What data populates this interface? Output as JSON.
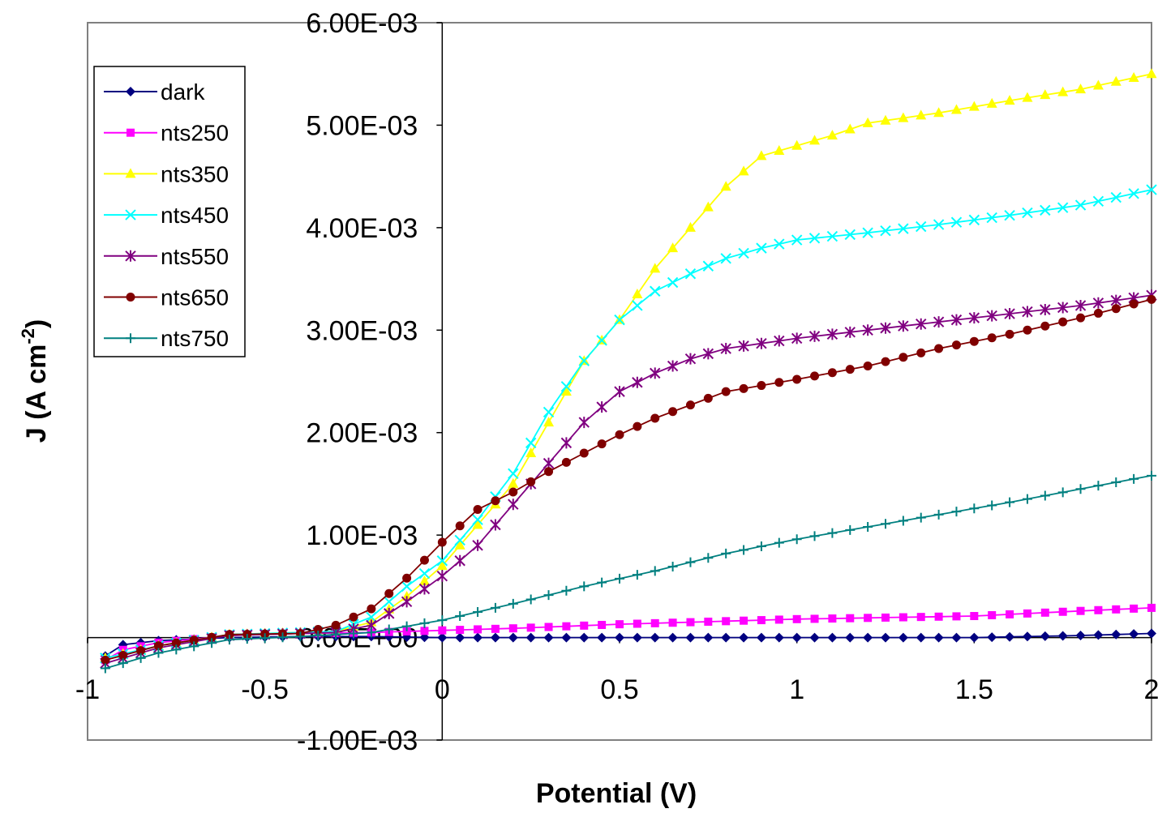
{
  "chart_data": {
    "type": "line",
    "title": "",
    "xlabel": "Potential (V)",
    "ylabel_main": "J (A cm",
    "ylabel_sup": "-2",
    "ylabel_close": ")",
    "xlim": [
      -1,
      2
    ],
    "ylim": [
      -0.001,
      0.006
    ],
    "x_ticks": [
      {
        "value": -1,
        "label": "-1"
      },
      {
        "value": -0.5,
        "label": "-0.5"
      },
      {
        "value": 0,
        "label": "0"
      },
      {
        "value": 0.5,
        "label": "0.5"
      },
      {
        "value": 1,
        "label": "1"
      },
      {
        "value": 1.5,
        "label": "1.5"
      },
      {
        "value": 2,
        "label": "2"
      }
    ],
    "y_ticks": [
      {
        "value": 0.006,
        "label": "6.00E-03"
      },
      {
        "value": 0.005,
        "label": "5.00E-03"
      },
      {
        "value": 0.004,
        "label": "4.00E-03"
      },
      {
        "value": 0.003,
        "label": "3.00E-03"
      },
      {
        "value": 0.002,
        "label": "2.00E-03"
      },
      {
        "value": 0.001,
        "label": "1.00E-03"
      },
      {
        "value": 0,
        "label": "0.00E+00"
      },
      {
        "value": -0.001,
        "label": "-1.00E-03"
      }
    ],
    "x_start": -0.95,
    "x_step": 0.05,
    "legend_position": "top-left",
    "series": [
      {
        "name": "dark",
        "color": "#000080",
        "marker": "diamond",
        "keys": [
          [
            -0.95,
            -0.00018
          ],
          [
            -0.9,
            -7e-05
          ],
          [
            -0.8,
            -3e-05
          ],
          [
            -0.6,
            0
          ],
          [
            -0.4,
            1e-05
          ],
          [
            -0.2,
            1e-05
          ],
          [
            0,
            0
          ],
          [
            0.5,
            0
          ],
          [
            1,
            0
          ],
          [
            1.5,
            0
          ],
          [
            1.8,
            2e-05
          ],
          [
            2,
            4e-05
          ]
        ]
      },
      {
        "name": "nts250",
        "color": "#FF00FF",
        "marker": "square",
        "keys": [
          [
            -0.95,
            -0.00022
          ],
          [
            -0.9,
            -0.00012
          ],
          [
            -0.8,
            -5e-05
          ],
          [
            -0.6,
            2e-05
          ],
          [
            -0.4,
            4e-05
          ],
          [
            -0.2,
            5e-05
          ],
          [
            0,
            7e-05
          ],
          [
            0.2,
            9e-05
          ],
          [
            0.5,
            0.00013
          ],
          [
            1,
            0.00018
          ],
          [
            1.5,
            0.00021
          ],
          [
            1.8,
            0.00026
          ],
          [
            2,
            0.00029
          ]
        ]
      },
      {
        "name": "nts350",
        "color": "#FFFF00",
        "marker": "triangle",
        "keys": [
          [
            -0.95,
            -0.0002
          ],
          [
            -0.8,
            -8e-05
          ],
          [
            -0.6,
            3e-05
          ],
          [
            -0.4,
            5e-05
          ],
          [
            -0.3,
            6e-05
          ],
          [
            -0.2,
            0.00015
          ],
          [
            -0.1,
            0.0004
          ],
          [
            0,
            0.0007
          ],
          [
            0.1,
            0.0011
          ],
          [
            0.2,
            0.0015
          ],
          [
            0.3,
            0.0021
          ],
          [
            0.4,
            0.0027
          ],
          [
            0.5,
            0.0031
          ],
          [
            0.6,
            0.0036
          ],
          [
            0.7,
            0.004
          ],
          [
            0.8,
            0.0044
          ],
          [
            0.9,
            0.0047
          ],
          [
            1,
            0.0048
          ],
          [
            1.1,
            0.0049
          ],
          [
            1.2,
            0.00502
          ],
          [
            1.4,
            0.00512
          ],
          [
            1.6,
            0.00524
          ],
          [
            1.8,
            0.00535
          ],
          [
            2,
            0.0055
          ]
        ]
      },
      {
        "name": "nts450",
        "color": "#00FFFF",
        "marker": "x",
        "keys": [
          [
            -0.95,
            -0.0002
          ],
          [
            -0.8,
            -8e-05
          ],
          [
            -0.6,
            3e-05
          ],
          [
            -0.4,
            5e-05
          ],
          [
            -0.3,
            6e-05
          ],
          [
            -0.2,
            0.0002
          ],
          [
            -0.1,
            0.0005
          ],
          [
            0,
            0.00075
          ],
          [
            0.1,
            0.00115
          ],
          [
            0.2,
            0.0016
          ],
          [
            0.3,
            0.0022
          ],
          [
            0.4,
            0.0027
          ],
          [
            0.5,
            0.0031
          ],
          [
            0.6,
            0.00338
          ],
          [
            0.7,
            0.00355
          ],
          [
            0.8,
            0.0037
          ],
          [
            0.9,
            0.0038
          ],
          [
            1,
            0.00388
          ],
          [
            1.2,
            0.00395
          ],
          [
            1.4,
            0.00403
          ],
          [
            1.6,
            0.00412
          ],
          [
            1.8,
            0.00422
          ],
          [
            2,
            0.00437
          ]
        ]
      },
      {
        "name": "nts550",
        "color": "#800080",
        "marker": "asterisk",
        "keys": [
          [
            -0.95,
            -0.00025
          ],
          [
            -0.8,
            -0.0001
          ],
          [
            -0.6,
            2e-05
          ],
          [
            -0.4,
            4e-05
          ],
          [
            -0.3,
            5e-05
          ],
          [
            -0.2,
            0.00012
          ],
          [
            -0.1,
            0.00035
          ],
          [
            0,
            0.0006
          ],
          [
            0.1,
            0.0009
          ],
          [
            0.2,
            0.0013
          ],
          [
            0.3,
            0.0017
          ],
          [
            0.4,
            0.0021
          ],
          [
            0.5,
            0.0024
          ],
          [
            0.6,
            0.00258
          ],
          [
            0.7,
            0.00272
          ],
          [
            0.8,
            0.00282
          ],
          [
            1,
            0.00292
          ],
          [
            1.2,
            0.003
          ],
          [
            1.4,
            0.00308
          ],
          [
            1.6,
            0.00316
          ],
          [
            1.8,
            0.00324
          ],
          [
            2,
            0.00334
          ]
        ]
      },
      {
        "name": "nts650",
        "color": "#800000",
        "marker": "circle",
        "keys": [
          [
            -0.95,
            -0.00022
          ],
          [
            -0.8,
            -8e-05
          ],
          [
            -0.6,
            3e-05
          ],
          [
            -0.4,
            4e-05
          ],
          [
            -0.3,
            0.00012
          ],
          [
            -0.2,
            0.00028
          ],
          [
            -0.1,
            0.00058
          ],
          [
            0,
            0.00093
          ],
          [
            0.1,
            0.00125
          ],
          [
            0.2,
            0.00142
          ],
          [
            0.3,
            0.00162
          ],
          [
            0.4,
            0.0018
          ],
          [
            0.5,
            0.00198
          ],
          [
            0.6,
            0.00214
          ],
          [
            0.8,
            0.0024
          ],
          [
            1,
            0.00252
          ],
          [
            1.2,
            0.00265
          ],
          [
            1.4,
            0.00282
          ],
          [
            1.6,
            0.00296
          ],
          [
            1.8,
            0.00312
          ],
          [
            2,
            0.0033
          ]
        ]
      },
      {
        "name": "nts750",
        "color": "#008080",
        "marker": "plus",
        "keys": [
          [
            -0.95,
            -0.0003
          ],
          [
            -0.8,
            -0.00015
          ],
          [
            -0.6,
            -2e-05
          ],
          [
            -0.4,
            1e-05
          ],
          [
            -0.2,
            5e-05
          ],
          [
            0,
            0.00017
          ],
          [
            0.2,
            0.00033
          ],
          [
            0.4,
            0.0005
          ],
          [
            0.6,
            0.00065
          ],
          [
            0.8,
            0.00082
          ],
          [
            1,
            0.00096
          ],
          [
            1.2,
            0.00108
          ],
          [
            1.4,
            0.0012
          ],
          [
            1.6,
            0.00132
          ],
          [
            1.8,
            0.00145
          ],
          [
            2,
            0.00158
          ]
        ]
      }
    ]
  }
}
